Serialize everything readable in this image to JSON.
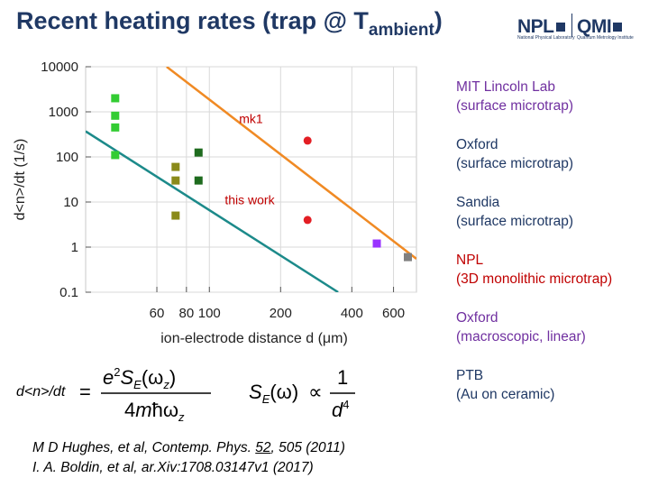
{
  "slide": {
    "title_main": "Recent heating rates (trap @ T",
    "title_sub": "ambient",
    "title_end": ")"
  },
  "logos": {
    "npl": {
      "text": "NPL",
      "subtitle": "National Physical Laboratory"
    },
    "qmi": {
      "text": "QMI",
      "subtitle": "Quantum Metrology Institute"
    }
  },
  "legend": [
    {
      "line1": "MIT Lincoln Lab",
      "line2": "(surface microtrap)",
      "color": "#7030a0"
    },
    {
      "line1": "Oxford",
      "line2": "(surface microtrap)",
      "color": "#1f3864"
    },
    {
      "line1": "Sandia",
      "line2": "(surface microtrap)",
      "color": "#1f3864"
    },
    {
      "line1": "NPL",
      "line2": "(3D monolithic microtrap)",
      "color": "#c00000"
    },
    {
      "line1": "Oxford",
      "line2": "(macroscopic, linear)",
      "color": "#7030a0"
    },
    {
      "line1": "PTB",
      "line2": "(Au on ceramic)",
      "color": "#1f3864"
    }
  ],
  "chart_data": {
    "type": "scatter",
    "xscale": "log",
    "yscale": "log",
    "xlim": [
      30,
      750
    ],
    "ylim": [
      0.1,
      10000
    ],
    "xlabel": "ion-electrode distance d (μm)",
    "ylabel": "d<n>/dt (1/s)",
    "xticks": [
      {
        "value": 60,
        "label": "60"
      },
      {
        "value": 80,
        "label": "80"
      },
      {
        "value": 100,
        "label": "100"
      },
      {
        "value": 200,
        "label": "200"
      },
      {
        "value": 400,
        "label": "400"
      },
      {
        "value": 600,
        "label": "600"
      }
    ],
    "yticks": [
      {
        "value": 10000,
        "label": "10000"
      },
      {
        "value": 1000,
        "label": "1000"
      },
      {
        "value": 100,
        "label": "100"
      },
      {
        "value": 10,
        "label": "10"
      },
      {
        "value": 1,
        "label": "1"
      },
      {
        "value": 0.1,
        "label": "0.1"
      }
    ],
    "grid": true,
    "series": [
      {
        "color": "#33cc33",
        "marker": "square",
        "points": [
          [
            40,
            2000
          ],
          [
            40,
            820
          ],
          [
            40,
            450
          ],
          [
            40,
            110
          ]
        ]
      },
      {
        "color": "#8a8a1a",
        "marker": "square",
        "points": [
          [
            72,
            60
          ],
          [
            72,
            30
          ],
          [
            72,
            5
          ]
        ]
      },
      {
        "color": "#1e6b1e",
        "marker": "square",
        "points": [
          [
            90,
            125
          ],
          [
            90,
            30
          ]
        ]
      },
      {
        "color": "#9933ff",
        "marker": "square",
        "points": [
          [
            510,
            1.2
          ]
        ]
      },
      {
        "color": "#808080",
        "marker": "square",
        "points": [
          [
            690,
            0.6
          ]
        ]
      },
      {
        "color": "#e31e24",
        "marker": "circle",
        "points": [
          [
            260,
            230
          ],
          [
            260,
            4
          ]
        ]
      }
    ],
    "fit_lines": [
      {
        "color": "#f08a24",
        "points": [
          [
            66,
            10000
          ],
          [
            750,
            0.55
          ]
        ]
      },
      {
        "color": "#1c8a8a",
        "points": [
          [
            30,
            370
          ],
          [
            350,
            0.1
          ]
        ]
      }
    ],
    "annotations": [
      {
        "text": "mk1",
        "x": 150,
        "y": 560
      },
      {
        "text": "this work",
        "x": 148,
        "y": 9
      }
    ]
  },
  "formula": {
    "lhs": "d<n>/dt"
  },
  "references": [
    {
      "pre": "M D Hughes, et al, Contemp. Phys. ",
      "vol": "52",
      "post": ", 505 (2011)"
    },
    {
      "pre": "I. A. Boldin, et al, ar.Xiv:1708.03147v1 (2017)",
      "vol": "",
      "post": ""
    }
  ]
}
